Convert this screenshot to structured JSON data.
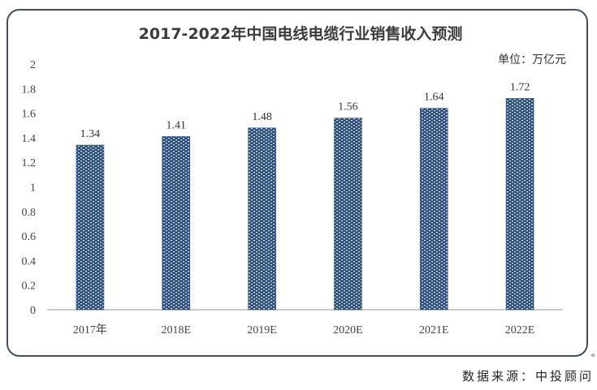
{
  "chart_data": {
    "type": "bar",
    "title": "2017-2022年中国电线电缆行业销售收入预测",
    "unit_label": "单位：万亿元",
    "categories": [
      "2017年",
      "2018E",
      "2019E",
      "2020E",
      "2021E",
      "2022E"
    ],
    "values": [
      1.34,
      1.41,
      1.48,
      1.56,
      1.64,
      1.72
    ],
    "value_labels": [
      "1.34",
      "1.41",
      "1.48",
      "1.56",
      "1.64",
      "1.72"
    ],
    "ylim": [
      0,
      2
    ],
    "yticks": [
      "0",
      "0.2",
      "0.4",
      "0.6",
      "0.8",
      "1",
      "1.2",
      "1.4",
      "1.6",
      "1.8",
      "2"
    ],
    "grid": false,
    "bar_color": "#2f4f8f",
    "bar_pattern_color": "#ffffff"
  },
  "source_note": "数据来源：中投顾问",
  "corner_mark": "«"
}
